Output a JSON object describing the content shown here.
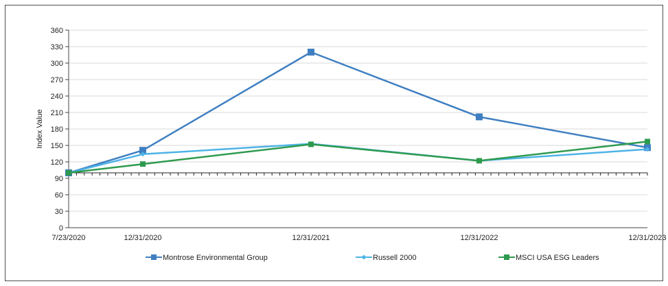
{
  "chart_data": {
    "type": "line",
    "title": "",
    "xlabel": "",
    "ylabel": "Index Value",
    "ylim": [
      0,
      360
    ],
    "y_ticks": [
      0,
      30,
      60,
      90,
      120,
      150,
      180,
      210,
      240,
      270,
      300,
      330,
      360
    ],
    "grid": true,
    "legend_position": "bottom",
    "categories": [
      "7/23/2020",
      "12/31/2020",
      "12/31/2021",
      "12/31/2022",
      "12/31/2023"
    ],
    "series": [
      {
        "name": "Montrose Environmental Group",
        "color": "#3f7fc1",
        "marker": "square",
        "values": [
          100,
          141,
          320,
          202,
          146
        ]
      },
      {
        "name": "Russell 2000",
        "color": "#4db3e6",
        "marker": "diamond",
        "values": [
          100,
          134,
          153,
          122,
          143
        ]
      },
      {
        "name": "MSCI USA ESG Leaders",
        "color": "#2e9a4f",
        "marker": "square",
        "values": [
          100,
          116,
          152,
          122,
          157
        ]
      }
    ]
  }
}
